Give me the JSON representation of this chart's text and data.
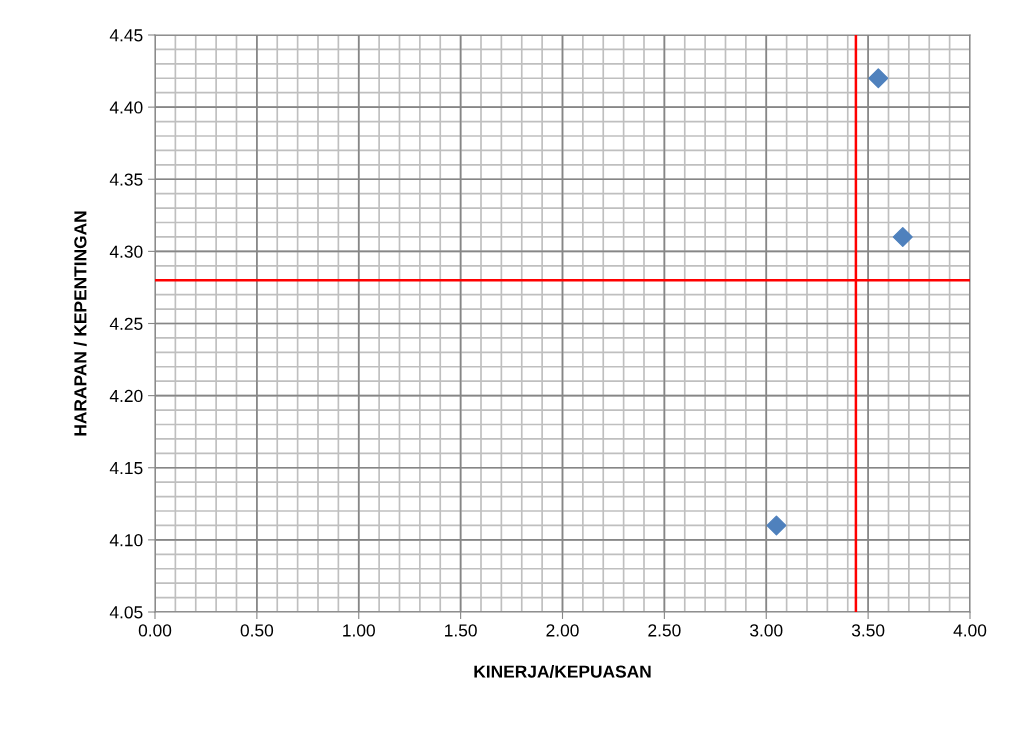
{
  "chart_data": {
    "type": "scatter",
    "xlabel": "KINERJA/KEPUASAN",
    "ylabel": "HARAPAN / KEPENTINGAN",
    "x": [
      3.55,
      3.67,
      3.05
    ],
    "series": [
      {
        "color": "#4f81bd",
        "values": [
          4.42,
          4.31,
          4.11
        ]
      }
    ],
    "marker": "diamond",
    "xlim": [
      0,
      4
    ],
    "xticks": [
      {
        "value": 0,
        "label": "0.00"
      },
      {
        "value": 0.5,
        "label": "0.50"
      },
      {
        "value": 1,
        "label": "1.00"
      },
      {
        "value": 1.5,
        "label": "1.50"
      },
      {
        "value": 2,
        "label": "2.00"
      },
      {
        "value": 2.5,
        "label": "2.50"
      },
      {
        "value": 3,
        "label": "3.00"
      },
      {
        "value": 3.5,
        "label": "3.50"
      },
      {
        "value": 4,
        "label": "4.00"
      }
    ],
    "ylim": [
      4.05,
      4.45
    ],
    "yticks": [
      {
        "value": 4.05,
        "label": "4.05"
      },
      {
        "value": 4.1,
        "label": "4.10"
      },
      {
        "value": 4.15,
        "label": "4.15"
      },
      {
        "value": 4.2,
        "label": "4.20"
      },
      {
        "value": 4.25,
        "label": "4.25"
      },
      {
        "value": 4.3,
        "label": "4.30"
      },
      {
        "value": 4.35,
        "label": "4.35"
      },
      {
        "value": 4.4,
        "label": "4.40"
      },
      {
        "value": 4.45,
        "label": "4.45"
      }
    ],
    "grid": true,
    "ref_lines": [
      {
        "axis": "x",
        "value": 3.44,
        "color": "#ff0000"
      },
      {
        "axis": "y",
        "value": 4.28,
        "color": "#ff0000"
      }
    ]
  }
}
